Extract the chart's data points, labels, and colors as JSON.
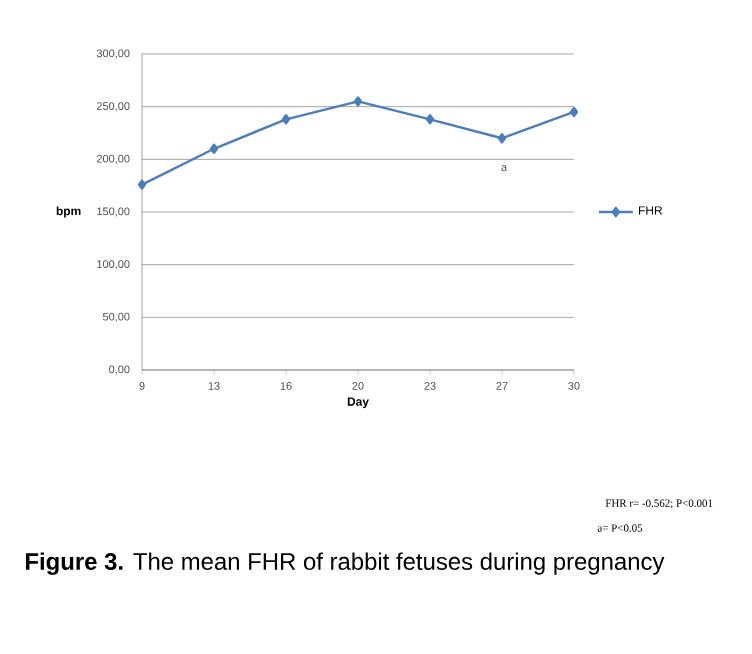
{
  "chart_data": {
    "type": "line",
    "xlabel": "Day",
    "ylabel": "bpm",
    "categories": [
      "9",
      "13",
      "16",
      "20",
      "23",
      "27",
      "30"
    ],
    "series": [
      {
        "name": "FHR",
        "color": "#4a7ebb",
        "values": [
          176,
          210,
          238,
          255,
          238,
          220,
          245
        ]
      }
    ],
    "ylim": [
      0,
      300
    ],
    "yticks": [
      {
        "value": 0,
        "label": "0,00"
      },
      {
        "value": 50,
        "label": "50,00"
      },
      {
        "value": 100,
        "label": "100,00"
      },
      {
        "value": 150,
        "label": "150,00"
      },
      {
        "value": 200,
        "label": "200,00"
      },
      {
        "value": 250,
        "label": "250,00"
      },
      {
        "value": 300,
        "label": "300,00"
      }
    ],
    "grid": "y",
    "legend": "right",
    "marker": "diamond",
    "line_style": "solid",
    "annotations": [
      "a",
      "FHR  r= -0.562; P<0.001",
      "a= P<0.05",
      "**Figure 3.** The mean FHR of rabbit fetuses during pregnancy"
    ]
  }
}
